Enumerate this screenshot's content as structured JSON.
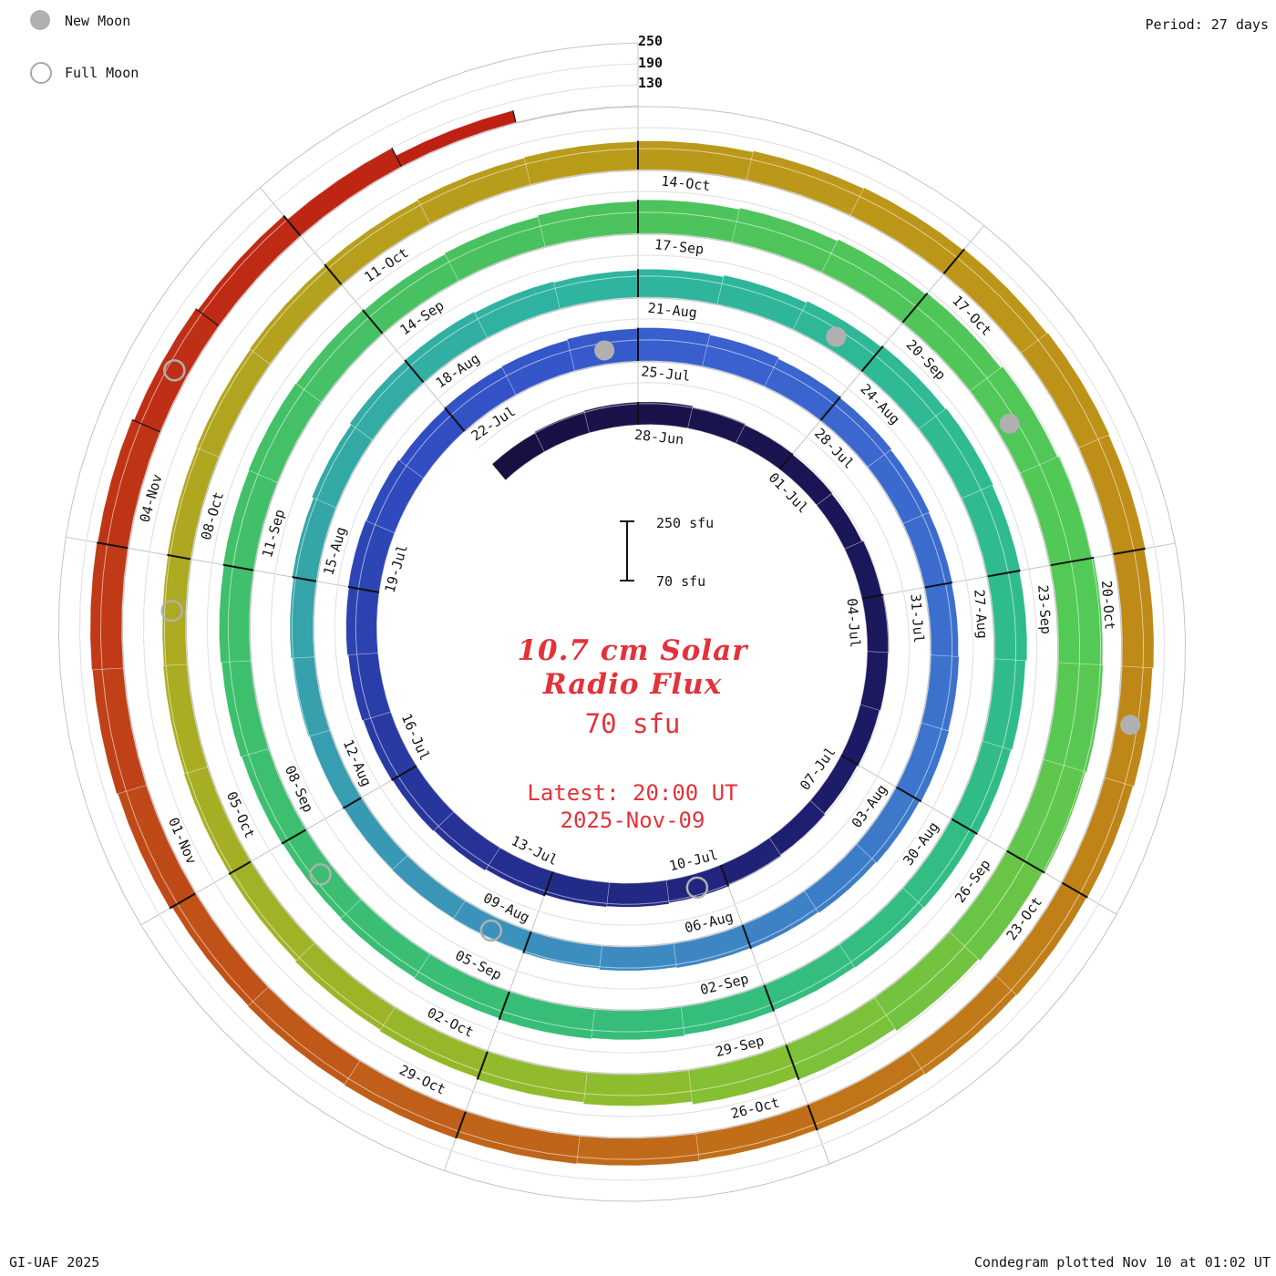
{
  "header": {
    "period_label": "Period: 27 days"
  },
  "legend": {
    "new_moon": "New Moon",
    "full_moon": "Full Moon"
  },
  "footer": {
    "left": "GI-UAF 2025",
    "right": "Condegram plotted Nov 10 at 01:02 UT"
  },
  "center": {
    "title_line1": "10.7 cm Solar",
    "title_line2": "Radio Flux",
    "current_value": "70 sfu",
    "latest_line1": "Latest: 20:00 UT",
    "latest_line2": "2025-Nov-09",
    "scale_top": "250 sfu",
    "scale_bottom": "70 sfu"
  },
  "radial_axis_labels": [
    "250",
    "190",
    "130"
  ],
  "chart_data": {
    "type": "spiral_bar",
    "title": "10.7 cm Solar Radio Flux condegram",
    "series_name": "F10.7 solar radio flux (sfu)",
    "period_days": 27,
    "flux_min": 70,
    "flux_max": 250,
    "grid_levels": [
      130,
      190,
      250
    ],
    "tick_step_days": 3,
    "start_date": "2025-06-25",
    "end_date": "2025-11-09",
    "values_start_day": -3,
    "values": [
      130,
      133,
      135,
      135,
      132,
      128,
      126,
      124,
      128,
      132,
      130,
      127,
      125,
      128,
      132,
      135,
      138,
      140,
      144,
      148,
      150,
      152,
      155,
      158,
      160,
      158,
      155,
      158,
      160,
      163,
      165,
      162,
      158,
      155,
      152,
      150,
      148,
      150,
      152,
      148,
      145,
      142,
      140,
      138,
      135,
      132,
      130,
      128,
      130,
      133,
      136,
      140,
      145,
      150,
      153,
      150,
      147,
      150,
      155,
      160,
      165,
      168,
      165,
      162,
      158,
      155,
      152,
      150,
      148,
      150,
      153,
      155,
      152,
      150,
      148,
      150,
      153,
      156,
      158,
      160,
      158,
      155,
      158,
      162,
      166,
      170,
      175,
      180,
      186,
      192,
      196,
      198,
      195,
      190,
      184,
      176,
      168,
      160,
      155,
      150,
      146,
      142,
      140,
      138,
      136,
      138,
      140,
      142,
      145,
      148,
      150,
      152,
      155,
      158,
      162,
      165,
      163,
      160,
      157,
      154,
      152,
      150,
      148,
      146,
      148,
      150,
      152,
      150,
      148,
      155,
      158,
      160,
      158,
      152,
      145,
      130,
      105,
      70
    ],
    "tick_labels": [
      "28-Jun",
      "01-Jul",
      "04-Jul",
      "07-Jul",
      "10-Jul",
      "13-Jul",
      "16-Jul",
      "19-Jul",
      "22-Jul",
      "25-Jul",
      "28-Jul",
      "31-Jul",
      "03-Aug",
      "06-Aug",
      "09-Aug",
      "12-Aug",
      "15-Aug",
      "18-Aug",
      "21-Aug",
      "24-Aug",
      "27-Aug",
      "30-Aug",
      "02-Sep",
      "05-Sep",
      "08-Sep",
      "11-Sep",
      "14-Sep",
      "17-Sep",
      "20-Sep",
      "23-Sep",
      "26-Sep",
      "29-Sep",
      "02-Oct",
      "05-Oct",
      "08-Oct",
      "11-Oct",
      "14-Oct",
      "17-Oct",
      "20-Oct",
      "23-Oct",
      "26-Oct",
      "29-Oct",
      "01-Nov",
      "04-Nov"
    ],
    "new_moon_day_indices": [
      26,
      56,
      85,
      115
    ],
    "full_moon_day_indices": [
      12,
      42,
      71,
      101,
      130
    ],
    "colors": {
      "text_red": "#e4323b",
      "moon_gray": "#b0b0b0",
      "grid": "#c3c3c3",
      "tick_black": "#111111"
    },
    "color_stops": [
      [
        -3,
        "#191040"
      ],
      [
        9,
        "#1c1a66"
      ],
      [
        16,
        "#253093"
      ],
      [
        23,
        "#2f4cc0"
      ],
      [
        28,
        "#3a60cf"
      ],
      [
        35,
        "#3c73cc"
      ],
      [
        41,
        "#3d8cc0"
      ],
      [
        47,
        "#35a2ab"
      ],
      [
        53,
        "#2fb3a0"
      ],
      [
        60,
        "#2fbc8e"
      ],
      [
        67,
        "#35bd7b"
      ],
      [
        74,
        "#3fbf6d"
      ],
      [
        81,
        "#4cc25c"
      ],
      [
        88,
        "#53c956"
      ],
      [
        94,
        "#8abe30"
      ],
      [
        100,
        "#a8ae22"
      ],
      [
        106,
        "#b89d1b"
      ],
      [
        112,
        "#bd9418"
      ],
      [
        118,
        "#c07d18"
      ],
      [
        124,
        "#c05c19"
      ],
      [
        129,
        "#c03617"
      ],
      [
        135,
        "#bd1a10"
      ]
    ]
  }
}
